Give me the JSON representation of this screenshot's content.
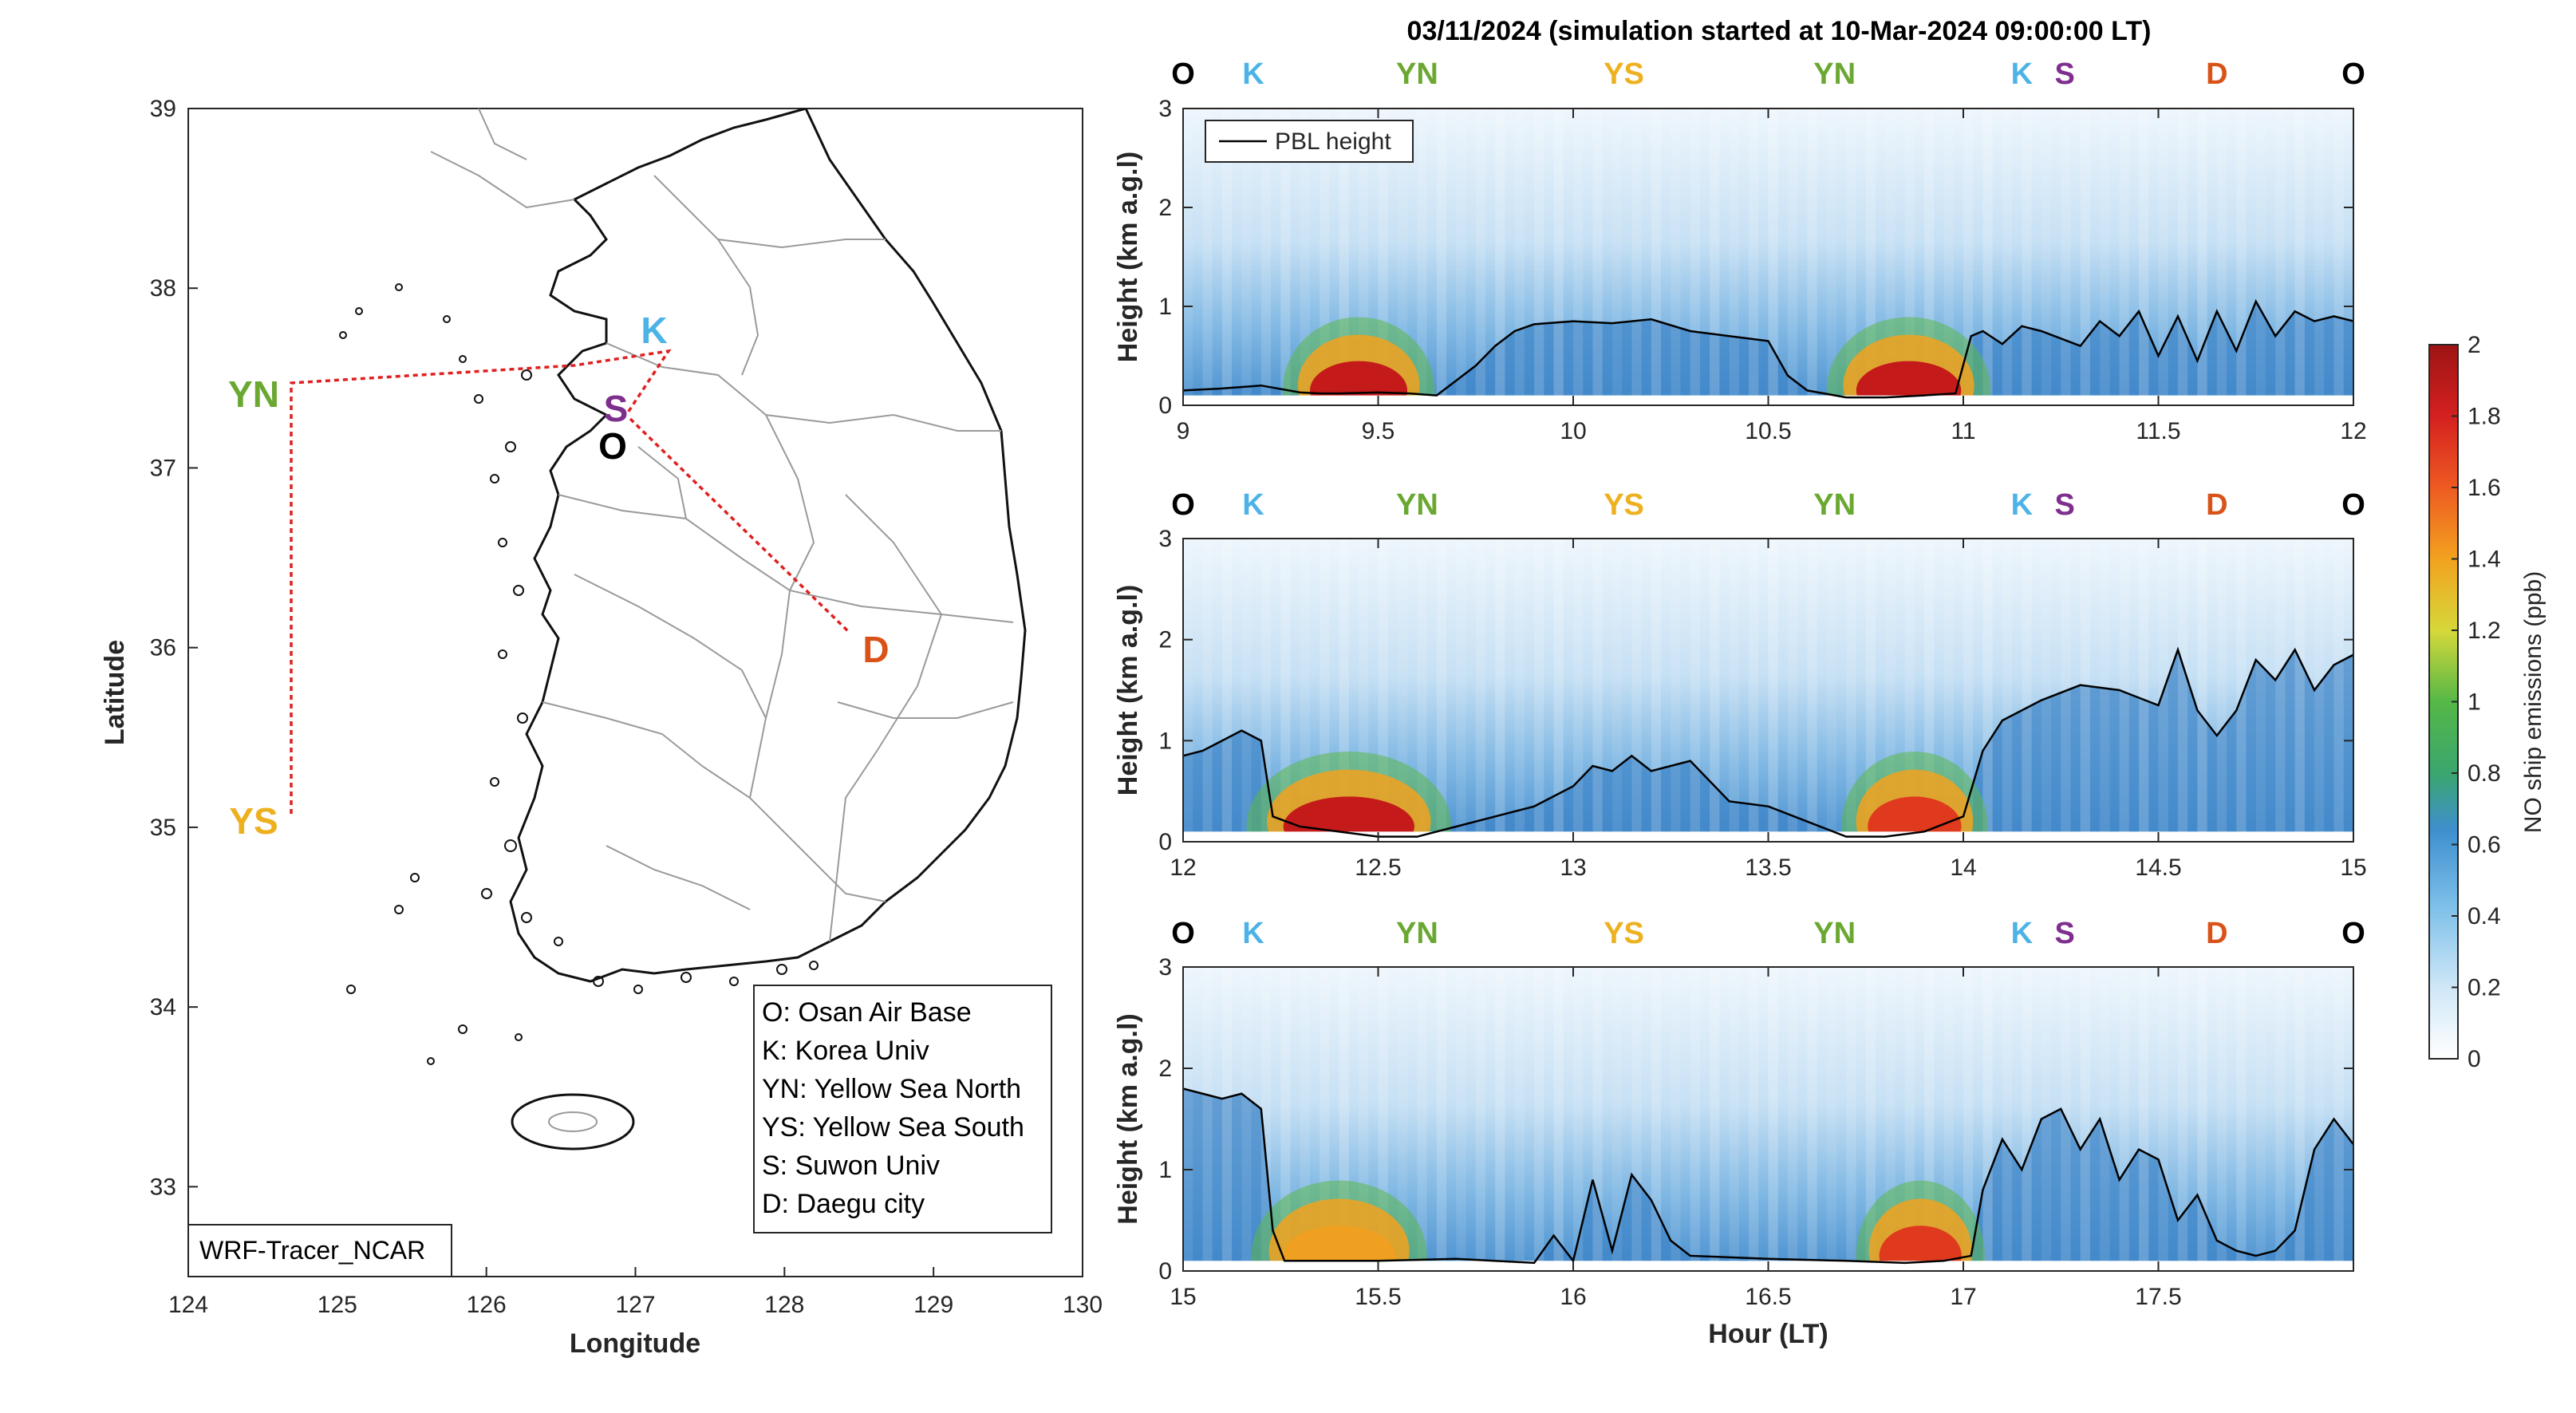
{
  "title": "03/11/2024 (simulation started at 10-Mar-2024 09:00:00 LT)",
  "colors": {
    "O": "#000000",
    "K": "#4db3e6",
    "YN": "#6aa832",
    "YS": "#edb120",
    "S": "#7e2f8e",
    "D": "#d95319",
    "route": "#e02020"
  },
  "map": {
    "xlabel": "Longitude",
    "ylabel": "Latitude",
    "xlim": [
      124,
      130
    ],
    "ylim": [
      32.5,
      39
    ],
    "xticks": [
      "124",
      "125",
      "126",
      "127",
      "128",
      "129",
      "130"
    ],
    "yticks": [
      "33",
      "34",
      "35",
      "36",
      "37",
      "38",
      "39"
    ],
    "model_tag": "WRF-Tracer_NCAR",
    "sites": [
      {
        "id": "YN",
        "lon": 124.7,
        "lat": 37.45
      },
      {
        "id": "YS",
        "lon": 124.7,
        "lat": 35.05
      },
      {
        "id": "K",
        "lon": 127.22,
        "lat": 37.62
      },
      {
        "id": "S",
        "lon": 126.98,
        "lat": 37.35
      },
      {
        "id": "O",
        "lon": 127.0,
        "lat": 37.05
      },
      {
        "id": "D",
        "lon": 128.55,
        "lat": 36.05
      }
    ],
    "legend": [
      "O: Osan Air Base",
      "K: Korea Univ",
      "YN: Yellow Sea North",
      "YS: Yellow Sea South",
      "S: Suwon Univ",
      "D: Daegu city"
    ]
  },
  "panel_common": {
    "ylabel": "Height (km a.g.l)",
    "ylim": [
      0,
      3
    ],
    "yticks": [
      "0",
      "1",
      "2",
      "3"
    ],
    "pbl_legend": "PBL height"
  },
  "colorbar": {
    "label": "NO ship emissions (ppb)",
    "range": [
      0,
      2
    ],
    "ticks": [
      "0",
      "0.2",
      "0.4",
      "0.6",
      "0.8",
      "1",
      "1.2",
      "1.4",
      "1.6",
      "1.8",
      "2"
    ]
  },
  "chart_data": [
    {
      "type": "heatmap",
      "xlim": [
        9,
        12
      ],
      "xticks": [
        "9",
        "9.5",
        "10",
        "10.5",
        "11",
        "11.5",
        "12"
      ],
      "xlabel": "",
      "site_labels": [
        {
          "id": "O",
          "hour": 9.0
        },
        {
          "id": "K",
          "hour": 9.18
        },
        {
          "id": "YN",
          "hour": 9.6
        },
        {
          "id": "YS",
          "hour": 10.13
        },
        {
          "id": "YN",
          "hour": 10.67
        },
        {
          "id": "K",
          "hour": 11.15
        },
        {
          "id": "S",
          "hour": 11.26
        },
        {
          "id": "D",
          "hour": 11.65
        },
        {
          "id": "O",
          "hour": 12.0
        }
      ],
      "pbl_height": {
        "x": [
          9.0,
          9.1,
          9.2,
          9.3,
          9.35,
          9.4,
          9.5,
          9.58,
          9.65,
          9.75,
          9.8,
          9.85,
          9.9,
          10.0,
          10.1,
          10.2,
          10.3,
          10.4,
          10.5,
          10.55,
          10.6,
          10.7,
          10.8,
          10.9,
          10.98,
          11.02,
          11.05,
          11.1,
          11.15,
          11.2,
          11.3,
          11.35,
          11.4,
          11.45,
          11.5,
          11.55,
          11.6,
          11.65,
          11.7,
          11.75,
          11.8,
          11.85,
          11.9,
          11.95,
          12.0
        ],
        "y": [
          0.15,
          0.17,
          0.2,
          0.13,
          0.12,
          0.12,
          0.13,
          0.12,
          0.1,
          0.4,
          0.6,
          0.75,
          0.82,
          0.85,
          0.83,
          0.87,
          0.75,
          0.7,
          0.65,
          0.3,
          0.15,
          0.08,
          0.08,
          0.1,
          0.12,
          0.7,
          0.75,
          0.62,
          0.8,
          0.75,
          0.6,
          0.85,
          0.7,
          0.95,
          0.5,
          0.9,
          0.45,
          0.95,
          0.55,
          1.05,
          0.7,
          0.95,
          0.85,
          0.9,
          0.85
        ]
      },
      "hotspots": [
        {
          "x": [
            9.32,
            9.58
          ],
          "peak": 1.95
        },
        {
          "x": [
            10.72,
            11.0
          ],
          "peak": 2.0
        }
      ]
    },
    {
      "type": "heatmap",
      "xlim": [
        12,
        15
      ],
      "xticks": [
        "12",
        "12.5",
        "13",
        "13.5",
        "14",
        "14.5",
        "15"
      ],
      "xlabel": "",
      "site_labels": [
        {
          "id": "O",
          "hour": 12.0
        },
        {
          "id": "K",
          "hour": 12.18
        },
        {
          "id": "YN",
          "hour": 12.6
        },
        {
          "id": "YS",
          "hour": 13.13
        },
        {
          "id": "YN",
          "hour": 13.67
        },
        {
          "id": "K",
          "hour": 14.15
        },
        {
          "id": "S",
          "hour": 14.26
        },
        {
          "id": "D",
          "hour": 14.65
        },
        {
          "id": "O",
          "hour": 15.0
        }
      ],
      "pbl_height": {
        "x": [
          12.0,
          12.05,
          12.1,
          12.15,
          12.2,
          12.23,
          12.3,
          12.4,
          12.5,
          12.6,
          12.7,
          12.8,
          12.9,
          13.0,
          13.05,
          13.1,
          13.15,
          13.2,
          13.3,
          13.4,
          13.5,
          13.6,
          13.7,
          13.8,
          13.9,
          14.0,
          14.05,
          14.1,
          14.2,
          14.3,
          14.4,
          14.5,
          14.55,
          14.6,
          14.65,
          14.7,
          14.75,
          14.8,
          14.85,
          14.9,
          14.95,
          15.0
        ],
        "y": [
          0.85,
          0.9,
          1.0,
          1.1,
          1.0,
          0.25,
          0.15,
          0.1,
          0.05,
          0.05,
          0.15,
          0.25,
          0.35,
          0.55,
          0.75,
          0.7,
          0.85,
          0.7,
          0.8,
          0.4,
          0.35,
          0.2,
          0.05,
          0.05,
          0.1,
          0.25,
          0.9,
          1.2,
          1.4,
          1.55,
          1.5,
          1.35,
          1.9,
          1.3,
          1.05,
          1.3,
          1.8,
          1.6,
          1.9,
          1.5,
          1.75,
          1.85
        ]
      },
      "hotspots": [
        {
          "x": [
            12.25,
            12.6
          ],
          "peak": 1.95
        },
        {
          "x": [
            13.75,
            14.0
          ],
          "peak": 1.7
        }
      ]
    },
    {
      "type": "heatmap",
      "xlim": [
        15,
        18
      ],
      "xticks": [
        "15",
        "15.5",
        "16",
        "16.5",
        "17",
        "17.5"
      ],
      "xlabel": "Hour (LT)",
      "site_labels": [
        {
          "id": "O",
          "hour": 15.0
        },
        {
          "id": "K",
          "hour": 15.18
        },
        {
          "id": "YN",
          "hour": 15.6
        },
        {
          "id": "YS",
          "hour": 16.13
        },
        {
          "id": "YN",
          "hour": 16.67
        },
        {
          "id": "K",
          "hour": 17.15
        },
        {
          "id": "S",
          "hour": 17.26
        },
        {
          "id": "D",
          "hour": 17.65
        },
        {
          "id": "O",
          "hour": 18.0
        }
      ],
      "pbl_height": {
        "x": [
          15.0,
          15.05,
          15.1,
          15.15,
          15.2,
          15.23,
          15.26,
          15.35,
          15.5,
          15.7,
          15.9,
          15.95,
          16.0,
          16.05,
          16.1,
          16.15,
          16.2,
          16.25,
          16.3,
          16.5,
          16.7,
          16.85,
          16.95,
          17.02,
          17.05,
          17.1,
          17.15,
          17.2,
          17.25,
          17.3,
          17.35,
          17.4,
          17.45,
          17.5,
          17.55,
          17.6,
          17.65,
          17.7,
          17.75,
          17.8,
          17.85,
          17.9,
          17.95,
          18.0
        ],
        "y": [
          1.8,
          1.75,
          1.7,
          1.75,
          1.6,
          0.4,
          0.1,
          0.1,
          0.1,
          0.12,
          0.08,
          0.35,
          0.1,
          0.9,
          0.2,
          0.95,
          0.7,
          0.3,
          0.15,
          0.12,
          0.1,
          0.08,
          0.1,
          0.15,
          0.8,
          1.3,
          1.0,
          1.5,
          1.6,
          1.2,
          1.5,
          0.9,
          1.2,
          1.1,
          0.5,
          0.75,
          0.3,
          0.2,
          0.15,
          0.2,
          0.4,
          1.2,
          1.5,
          1.25
        ]
      },
      "hotspots": [
        {
          "x": [
            15.25,
            15.55
          ],
          "peak": 1.2
        },
        {
          "x": [
            16.78,
            17.0
          ],
          "peak": 1.6
        }
      ]
    }
  ]
}
